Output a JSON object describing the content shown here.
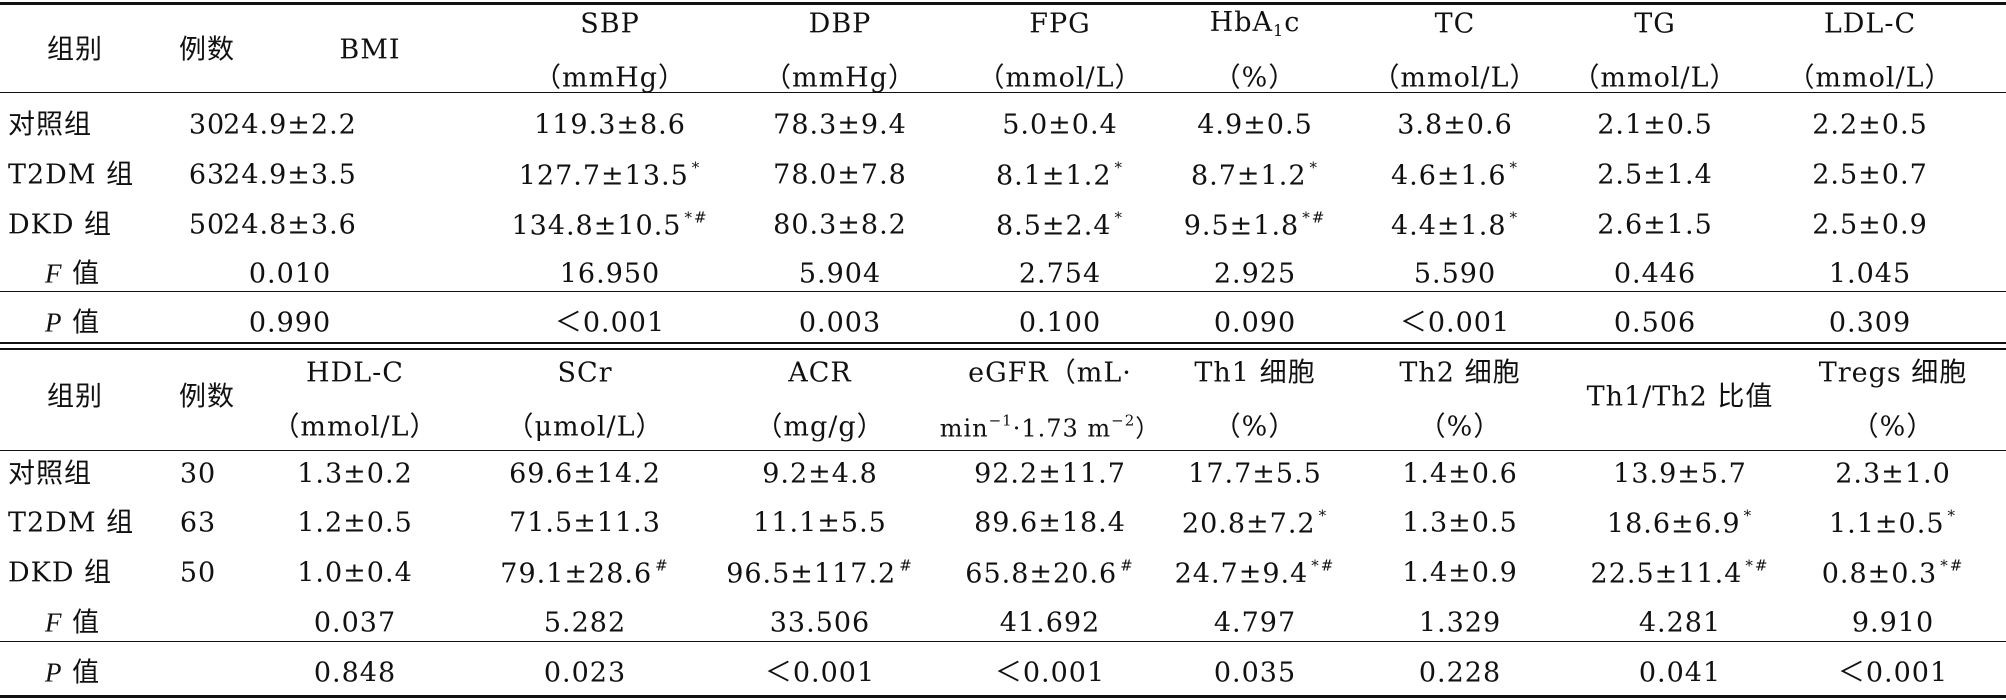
{
  "table1": {
    "header_top": [
      "组别",
      "例数",
      "BMI",
      "SBP",
      "DBP",
      "FPG",
      "HbA",
      "TC",
      "TG",
      "LDL-C"
    ],
    "hba_sub": "1",
    "hba_tail": "c",
    "header_units": [
      "（mmHg）",
      "（mmHg）",
      "（mmol/L）",
      "（%）",
      "（mmol/L）",
      "（mmol/L）",
      "（mmol/L）"
    ],
    "rows": [
      {
        "group": "对照组",
        "n": "30",
        "cells": [
          "24.9±2.2",
          "119.3±8.6",
          "78.3±9.4",
          "5.0±0.4",
          "4.9±0.5",
          "3.8±0.6",
          "2.1±0.5",
          "2.2±0.5"
        ],
        "sig": [
          "",
          "",
          "",
          "",
          "",
          "",
          "",
          ""
        ]
      },
      {
        "group": "T2DM 组",
        "n": "63",
        "cells": [
          "24.9±3.5",
          "127.7±13.5",
          "78.0±7.8",
          "8.1±1.2",
          "8.7±1.2",
          "4.6±1.6",
          "2.5±1.4",
          "2.5±0.7"
        ],
        "sig": [
          "",
          "*",
          "",
          "*",
          "*",
          "*",
          "",
          ""
        ]
      },
      {
        "group": "DKD 组",
        "n": "50",
        "cells": [
          "24.8±3.6",
          "134.8±10.5",
          "80.3±8.2",
          "8.5±2.4",
          "9.5±1.8",
          "4.4±1.8",
          "2.6±1.5",
          "2.5±0.9"
        ],
        "sig": [
          "",
          "*#",
          "",
          "*",
          "*#",
          "*",
          "",
          ""
        ]
      }
    ],
    "f_label": "F",
    "p_label": "P",
    "stat_suffix": " 值",
    "f_values": [
      "0.010",
      "16.950",
      "5.904",
      "2.754",
      "2.925",
      "5.590",
      "0.446",
      "1.045"
    ],
    "p_values": [
      "0.990",
      "＜0.001",
      "0.003",
      "0.100",
      "0.090",
      "＜0.001",
      "0.506",
      "0.309"
    ]
  },
  "table2": {
    "header_top": [
      "组别",
      "例数",
      "HDL-C",
      "SCr",
      "ACR",
      "eGFR（mL·",
      "Th1 细胞",
      "Th2 细胞",
      "Th1/Th2 比值",
      "Tregs 细胞"
    ],
    "egfr_unit_a": "min",
    "egfr_exp_a": "−1",
    "egfr_unit_b": "·1.73 m",
    "egfr_exp_b": "−2",
    "egfr_unit_c": "）",
    "header_units": [
      "（mmol/L）",
      "（μmol/L）",
      "（mg/g）",
      "（%）",
      "（%）",
      "（%）"
    ],
    "rows": [
      {
        "group": "对照组",
        "n": "30",
        "cells": [
          "1.3±0.2",
          "69.6±14.2",
          "9.2±4.8",
          "92.2±11.7",
          "17.7±5.5",
          "1.4±0.6",
          "13.9±5.7",
          "2.3±1.0"
        ],
        "sig": [
          "",
          "",
          "",
          "",
          "",
          "",
          "",
          ""
        ]
      },
      {
        "group": "T2DM 组",
        "n": "63",
        "cells": [
          "1.2±0.5",
          "71.5±11.3",
          "11.1±5.5",
          "89.6±18.4",
          "20.8±7.2",
          "1.3±0.5",
          "18.6±6.9",
          "1.1±0.5"
        ],
        "sig": [
          "",
          "",
          "",
          "",
          "*",
          "",
          "*",
          "*"
        ]
      },
      {
        "group": "DKD 组",
        "n": "50",
        "cells": [
          "1.0±0.4",
          "79.1±28.6",
          "96.5±117.2",
          "65.8±20.6",
          "24.7±9.4",
          "1.4±0.9",
          "22.5±11.4",
          "0.8±0.3"
        ],
        "sig": [
          "",
          "#",
          "#",
          "#",
          "*#",
          "",
          "*#",
          "*#"
        ]
      }
    ],
    "f_label": "F",
    "p_label": "P",
    "stat_suffix": " 值",
    "f_values": [
      "0.037",
      "5.282",
      "33.506",
      "41.692",
      "4.797",
      "1.329",
      "4.281",
      "9.910"
    ],
    "p_values": [
      "0.848",
      "0.023",
      "＜0.001",
      "＜0.001",
      "0.035",
      "0.228",
      "0.041",
      "＜0.001"
    ]
  }
}
